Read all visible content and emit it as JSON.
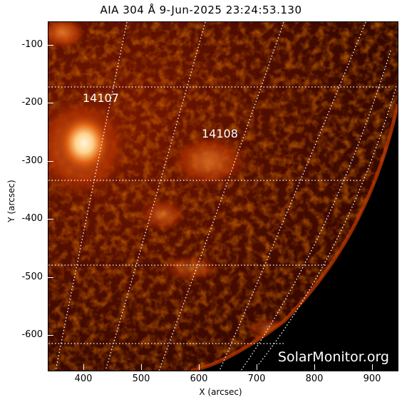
{
  "title": "AIA 304 Å  9-Jun-2025 23:24:53.130",
  "axes": {
    "xlabel": "X (arcsec)",
    "ylabel": "Y (arcsec)",
    "x_ticks": [
      "400",
      "500",
      "600",
      "700",
      "800",
      "900"
    ],
    "y_ticks": [
      "-100",
      "-200",
      "-300",
      "-400",
      "-500",
      "-600"
    ]
  },
  "regions": [
    {
      "id": "14107"
    },
    {
      "id": "14108"
    }
  ],
  "watermark": "SolarMonitor.org",
  "colors": {
    "background": "#000000",
    "disk_dark": "#2a0500",
    "disk_mid": "#8a1a00",
    "bright": "#ffd28a",
    "grid": "#ffffff"
  }
}
